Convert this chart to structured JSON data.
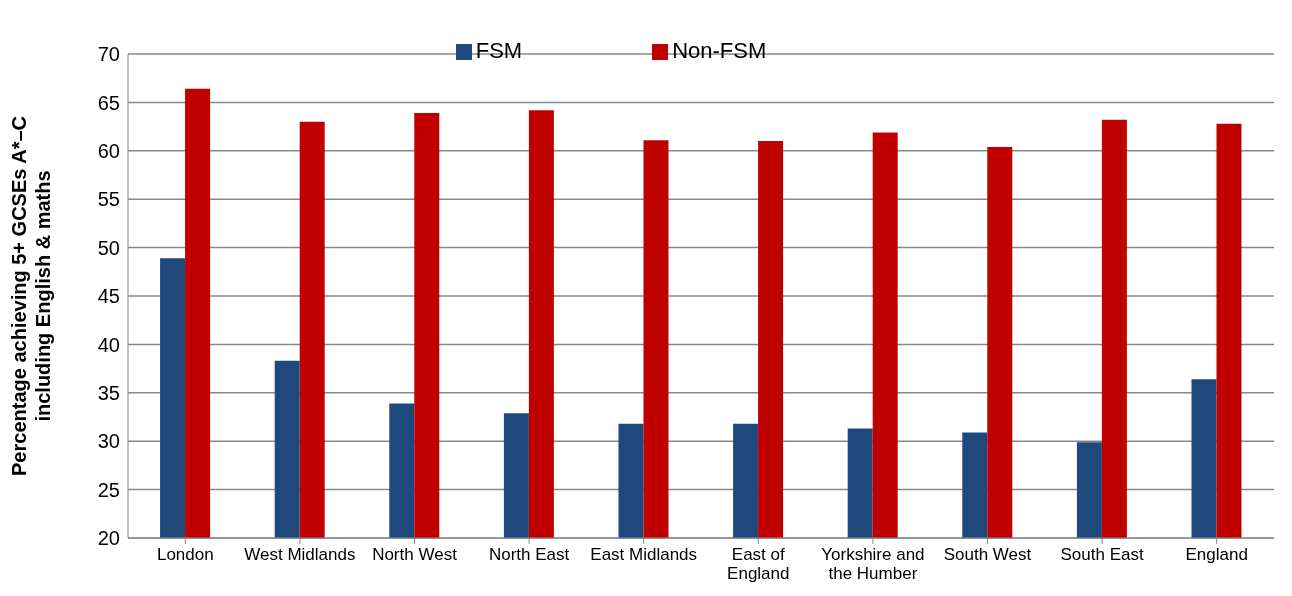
{
  "chart_data": {
    "type": "bar",
    "ylabel": "Percentage achieving 5+ GCSEs A*–C including English & maths",
    "categories": [
      "London",
      "West Midlands",
      "North West",
      "North East",
      "East Midlands",
      "East of England",
      "Yorkshire and the Humber",
      "South West",
      "South East",
      "England"
    ],
    "series": [
      {
        "name": "FSM",
        "color": "#1f497d",
        "values": [
          48.9,
          38.3,
          33.9,
          32.9,
          31.8,
          31.8,
          31.3,
          30.9,
          29.9,
          36.4
        ]
      },
      {
        "name": "Non-FSM",
        "color": "#c00000",
        "values": [
          66.4,
          63.0,
          63.9,
          64.2,
          61.1,
          61.0,
          61.9,
          60.4,
          63.2,
          62.8
        ]
      }
    ],
    "ylim": [
      20,
      70
    ],
    "yticks": [
      20,
      25,
      30,
      35,
      40,
      45,
      50,
      55,
      60,
      65,
      70
    ],
    "grid": "y",
    "legend": "top"
  }
}
